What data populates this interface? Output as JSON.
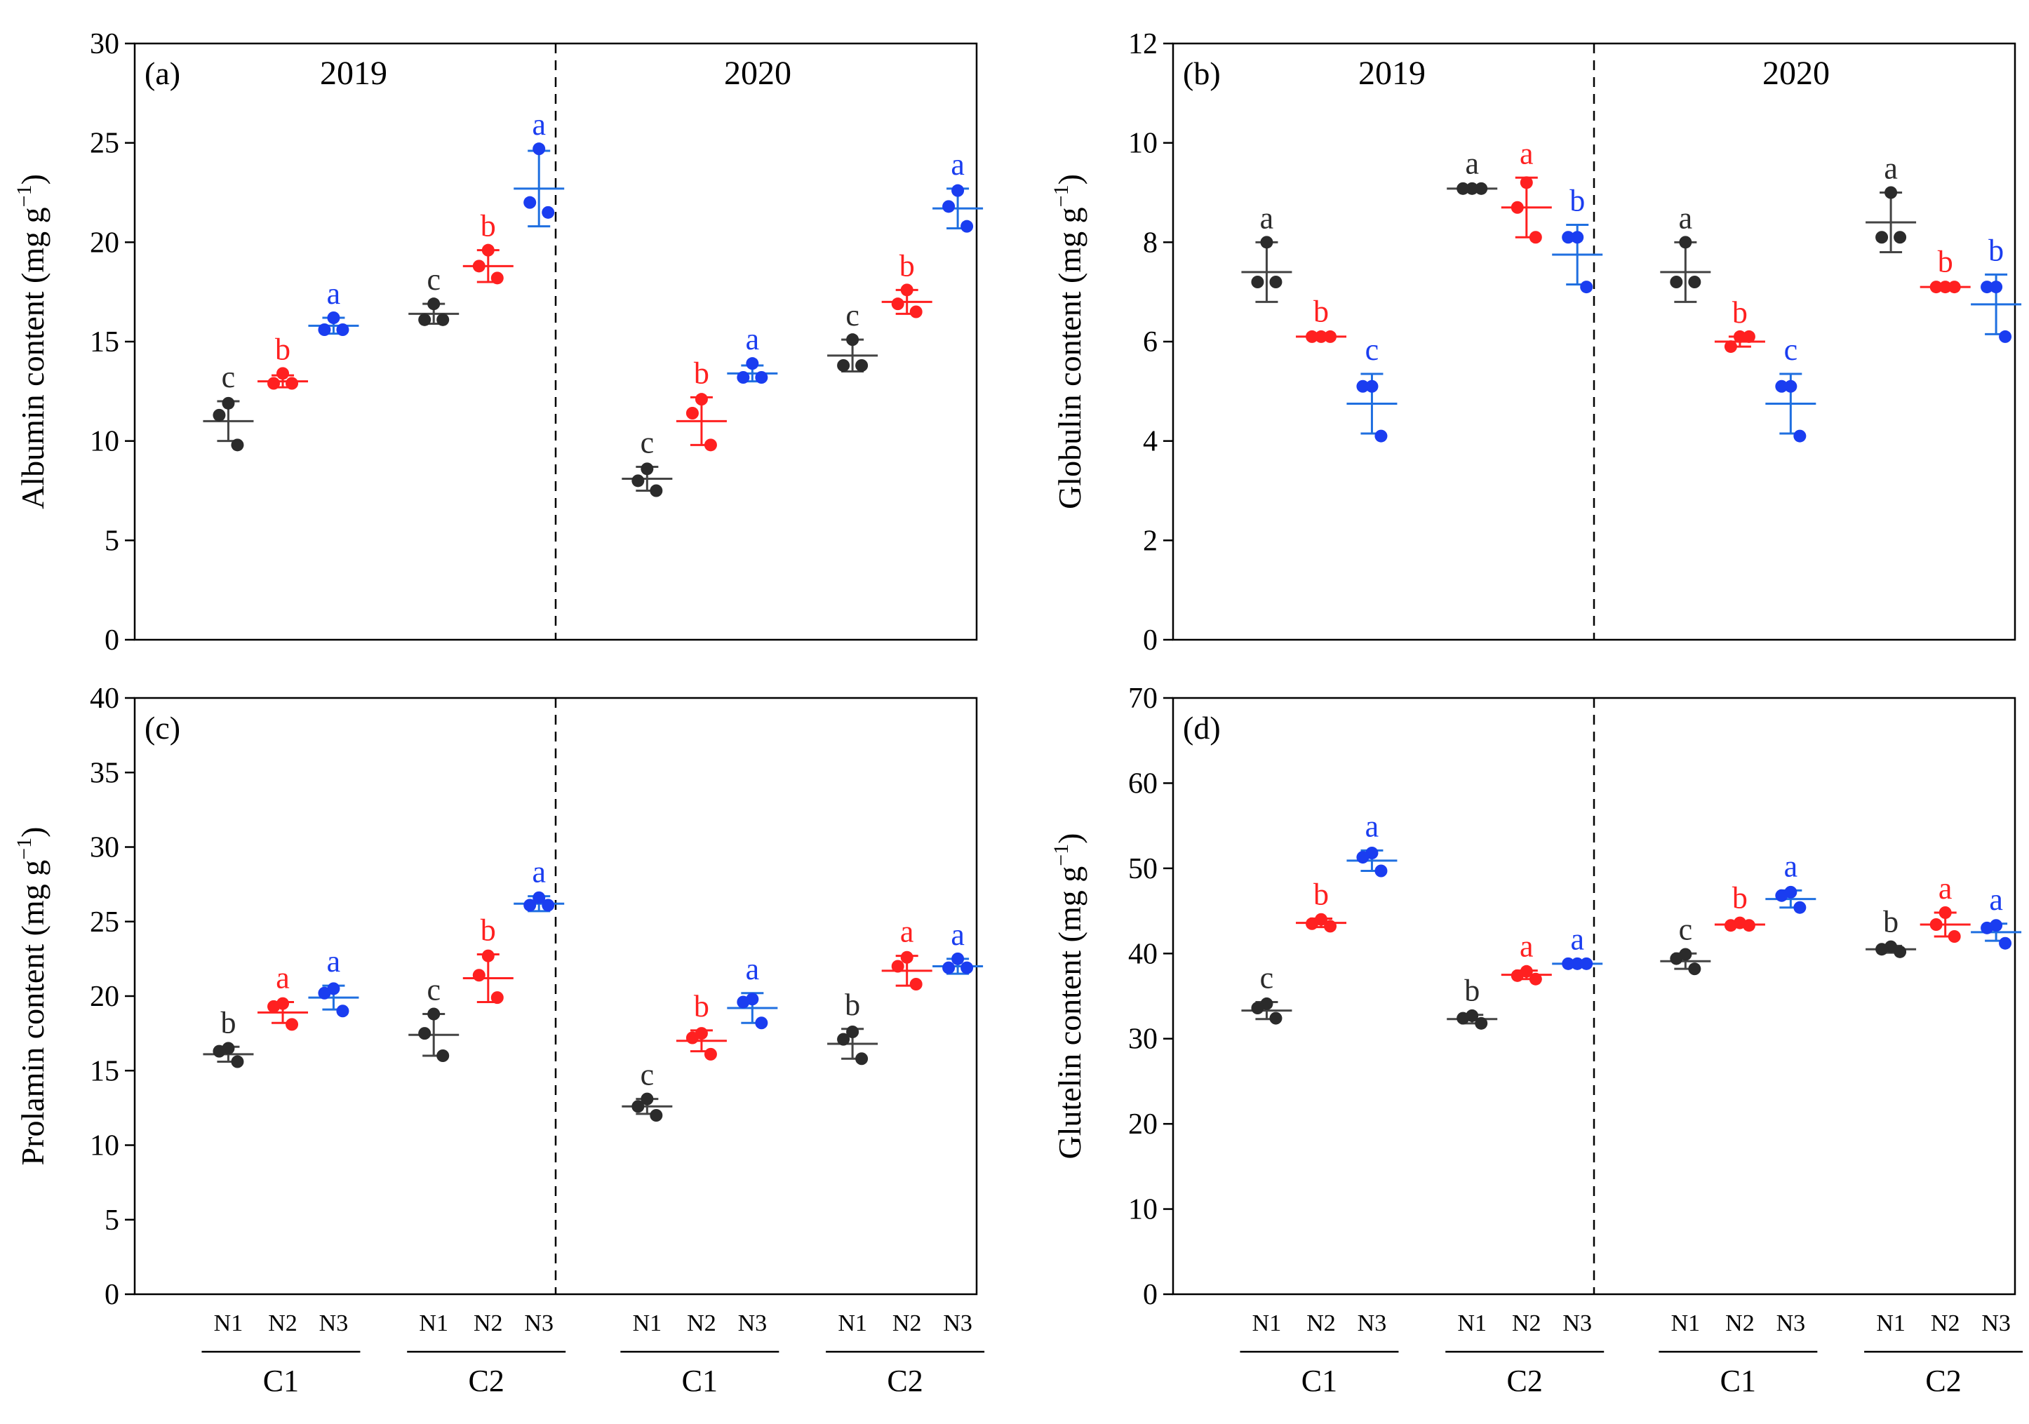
{
  "colors": {
    "N1": "#2b2b2b",
    "N2": "#ff2020",
    "N3": "#1a3df0",
    "errN3": "#1f6fe0",
    "axis": "#000000"
  },
  "chart_data": [
    {
      "type": "scatter",
      "panel_label": "(a)",
      "ylabel": "Albumin content (mg g",
      "ylabel_sup": "−1",
      "ylabel_end": ")",
      "ylim": [
        0,
        30
      ],
      "yticks": [
        "0",
        "5",
        "10",
        "15",
        "20",
        "25",
        "30"
      ],
      "years": [
        "2019",
        "2020"
      ],
      "cultivars": [
        "C1",
        "C2",
        "C1",
        "C2"
      ],
      "treatments": [
        "N1",
        "N2",
        "N3"
      ],
      "groups": [
        {
          "year": "2019",
          "cultivar": "C1",
          "points": [
            {
              "trt": "N1",
              "mean": 11.0,
              "sd": 1.0,
              "reps": [
                11.9,
                11.3,
                9.8
              ],
              "letter": "c"
            },
            {
              "trt": "N2",
              "mean": 13.0,
              "sd": 0.3,
              "reps": [
                13.4,
                12.9,
                12.9
              ],
              "letter": "b"
            },
            {
              "trt": "N3",
              "mean": 15.8,
              "sd": 0.4,
              "reps": [
                16.2,
                15.6,
                15.6
              ],
              "letter": "a"
            }
          ]
        },
        {
          "year": "2019",
          "cultivar": "C2",
          "points": [
            {
              "trt": "N1",
              "mean": 16.4,
              "sd": 0.5,
              "reps": [
                16.9,
                16.1,
                16.1
              ],
              "letter": "c"
            },
            {
              "trt": "N2",
              "mean": 18.8,
              "sd": 0.8,
              "reps": [
                19.6,
                18.8,
                18.2
              ],
              "letter": "b"
            },
            {
              "trt": "N3",
              "mean": 22.7,
              "sd": 1.9,
              "reps": [
                24.7,
                22.0,
                21.5
              ],
              "letter": "a"
            }
          ]
        },
        {
          "year": "2020",
          "cultivar": "C1",
          "points": [
            {
              "trt": "N1",
              "mean": 8.1,
              "sd": 0.6,
              "reps": [
                8.6,
                8.0,
                7.5
              ],
              "letter": "c"
            },
            {
              "trt": "N2",
              "mean": 11.0,
              "sd": 1.2,
              "reps": [
                12.1,
                11.4,
                9.8
              ],
              "letter": "b"
            },
            {
              "trt": "N3",
              "mean": 13.4,
              "sd": 0.4,
              "reps": [
                13.9,
                13.2,
                13.2
              ],
              "letter": "a"
            }
          ]
        },
        {
          "year": "2020",
          "cultivar": "C2",
          "points": [
            {
              "trt": "N1",
              "mean": 14.3,
              "sd": 0.8,
              "reps": [
                15.1,
                13.8,
                13.8
              ],
              "letter": "c"
            },
            {
              "trt": "N2",
              "mean": 17.0,
              "sd": 0.6,
              "reps": [
                17.6,
                16.9,
                16.5
              ],
              "letter": "b"
            },
            {
              "trt": "N3",
              "mean": 21.7,
              "sd": 1.0,
              "reps": [
                22.6,
                21.8,
                20.8
              ],
              "letter": "a"
            }
          ]
        }
      ]
    },
    {
      "type": "scatter",
      "panel_label": "(b)",
      "ylabel": "Globulin content (mg g",
      "ylabel_sup": "−1",
      "ylabel_end": ")",
      "ylim": [
        0,
        12
      ],
      "yticks": [
        "0",
        "2",
        "4",
        "6",
        "8",
        "10",
        "12"
      ],
      "years": [
        "2019",
        "2020"
      ],
      "cultivars": [
        "C1",
        "C2",
        "C1",
        "C2"
      ],
      "treatments": [
        "N1",
        "N2",
        "N3"
      ],
      "groups": [
        {
          "year": "2019",
          "cultivar": "C1",
          "points": [
            {
              "trt": "N1",
              "mean": 7.4,
              "sd": 0.6,
              "reps": [
                8.0,
                7.2,
                7.2
              ],
              "letter": "a"
            },
            {
              "trt": "N2",
              "mean": 6.1,
              "sd": 0.02,
              "reps": [
                6.1,
                6.1,
                6.1
              ],
              "letter": "b"
            },
            {
              "trt": "N3",
              "mean": 4.75,
              "sd": 0.6,
              "reps": [
                5.1,
                5.1,
                4.1
              ],
              "letter": "c"
            }
          ]
        },
        {
          "year": "2019",
          "cultivar": "C2",
          "points": [
            {
              "trt": "N1",
              "mean": 9.08,
              "sd": 0.02,
              "reps": [
                9.08,
                9.08,
                9.08
              ],
              "letter": "a"
            },
            {
              "trt": "N2",
              "mean": 8.7,
              "sd": 0.6,
              "reps": [
                9.2,
                8.7,
                8.1
              ],
              "letter": "a"
            },
            {
              "trt": "N3",
              "mean": 7.75,
              "sd": 0.6,
              "reps": [
                8.1,
                8.1,
                7.1
              ],
              "letter": "b"
            }
          ]
        },
        {
          "year": "2020",
          "cultivar": "C1",
          "points": [
            {
              "trt": "N1",
              "mean": 7.4,
              "sd": 0.6,
              "reps": [
                8.0,
                7.2,
                7.2
              ],
              "letter": "a"
            },
            {
              "trt": "N2",
              "mean": 6.0,
              "sd": 0.1,
              "reps": [
                6.1,
                5.9,
                6.1
              ],
              "letter": "b"
            },
            {
              "trt": "N3",
              "mean": 4.75,
              "sd": 0.6,
              "reps": [
                5.1,
                5.1,
                4.1
              ],
              "letter": "c"
            }
          ]
        },
        {
          "year": "2020",
          "cultivar": "C2",
          "points": [
            {
              "trt": "N1",
              "mean": 8.4,
              "sd": 0.6,
              "reps": [
                9.0,
                8.1,
                8.1
              ],
              "letter": "a"
            },
            {
              "trt": "N2",
              "mean": 7.1,
              "sd": 0.02,
              "reps": [
                7.1,
                7.1,
                7.1
              ],
              "letter": "b"
            },
            {
              "trt": "N3",
              "mean": 6.75,
              "sd": 0.6,
              "reps": [
                7.1,
                7.1,
                6.1
              ],
              "letter": "b"
            }
          ]
        }
      ]
    },
    {
      "type": "scatter",
      "panel_label": "(c)",
      "ylabel": "Prolamin content (mg g",
      "ylabel_sup": "−1",
      "ylabel_end": ")",
      "ylim": [
        0,
        40
      ],
      "yticks": [
        "0",
        "5",
        "10",
        "15",
        "20",
        "25",
        "30",
        "35",
        "40"
      ],
      "years": [
        "2019",
        "2020"
      ],
      "cultivars": [
        "C1",
        "C2",
        "C1",
        "C2"
      ],
      "treatments": [
        "N1",
        "N2",
        "N3"
      ],
      "groups": [
        {
          "year": "2019",
          "cultivar": "C1",
          "points": [
            {
              "trt": "N1",
              "mean": 16.1,
              "sd": 0.5,
              "reps": [
                16.5,
                16.3,
                15.6
              ],
              "letter": "b"
            },
            {
              "trt": "N2",
              "mean": 18.9,
              "sd": 0.7,
              "reps": [
                19.5,
                19.3,
                18.1
              ],
              "letter": "a"
            },
            {
              "trt": "N3",
              "mean": 19.9,
              "sd": 0.8,
              "reps": [
                20.5,
                20.2,
                19.0
              ],
              "letter": "a"
            }
          ]
        },
        {
          "year": "2019",
          "cultivar": "C2",
          "points": [
            {
              "trt": "N1",
              "mean": 17.4,
              "sd": 1.4,
              "reps": [
                18.8,
                17.5,
                16.0
              ],
              "letter": "c"
            },
            {
              "trt": "N2",
              "mean": 21.2,
              "sd": 1.6,
              "reps": [
                22.7,
                21.4,
                19.9
              ],
              "letter": "b"
            },
            {
              "trt": "N3",
              "mean": 26.2,
              "sd": 0.5,
              "reps": [
                26.6,
                26.1,
                26.1
              ],
              "letter": "a"
            }
          ]
        },
        {
          "year": "2020",
          "cultivar": "C1",
          "points": [
            {
              "trt": "N1",
              "mean": 12.6,
              "sd": 0.5,
              "reps": [
                13.1,
                12.6,
                12.0
              ],
              "letter": "c"
            },
            {
              "trt": "N2",
              "mean": 17.0,
              "sd": 0.7,
              "reps": [
                17.5,
                17.2,
                16.1
              ],
              "letter": "b"
            },
            {
              "trt": "N3",
              "mean": 19.2,
              "sd": 1.0,
              "reps": [
                19.8,
                19.6,
                18.2
              ],
              "letter": "a"
            }
          ]
        },
        {
          "year": "2020",
          "cultivar": "C2",
          "points": [
            {
              "trt": "N1",
              "mean": 16.8,
              "sd": 1.0,
              "reps": [
                17.6,
                17.1,
                15.8
              ],
              "letter": "b"
            },
            {
              "trt": "N2",
              "mean": 21.7,
              "sd": 1.0,
              "reps": [
                22.6,
                22.0,
                20.8
              ],
              "letter": "a"
            },
            {
              "trt": "N3",
              "mean": 22.0,
              "sd": 0.5,
              "reps": [
                22.5,
                21.9,
                21.9
              ],
              "letter": "a"
            }
          ]
        }
      ]
    },
    {
      "type": "scatter",
      "panel_label": "(d)",
      "ylabel": "Glutelin content (mg g",
      "ylabel_sup": "−1",
      "ylabel_end": ")",
      "ylim": [
        0,
        70
      ],
      "yticks": [
        "0",
        "10",
        "20",
        "30",
        "40",
        "50",
        "60",
        "70"
      ],
      "years": [
        "2019",
        "2020"
      ],
      "cultivars": [
        "C1",
        "C2",
        "C1",
        "C2"
      ],
      "treatments": [
        "N1",
        "N2",
        "N3"
      ],
      "groups": [
        {
          "year": "2019",
          "cultivar": "C1",
          "points": [
            {
              "trt": "N1",
              "mean": 33.3,
              "sd": 1.0,
              "reps": [
                34.1,
                33.6,
                32.4
              ],
              "letter": "c"
            },
            {
              "trt": "N2",
              "mean": 43.6,
              "sd": 0.5,
              "reps": [
                44.0,
                43.5,
                43.2
              ],
              "letter": "b"
            },
            {
              "trt": "N3",
              "mean": 50.9,
              "sd": 1.2,
              "reps": [
                51.8,
                51.3,
                49.7
              ],
              "letter": "a"
            }
          ]
        },
        {
          "year": "2019",
          "cultivar": "C2",
          "points": [
            {
              "trt": "N1",
              "mean": 32.3,
              "sd": 0.5,
              "reps": [
                32.7,
                32.4,
                31.8
              ],
              "letter": "b"
            },
            {
              "trt": "N2",
              "mean": 37.5,
              "sd": 0.5,
              "reps": [
                37.9,
                37.4,
                37.0
              ],
              "letter": "a"
            },
            {
              "trt": "N3",
              "mean": 38.8,
              "sd": 0.05,
              "reps": [
                38.8,
                38.8,
                38.8
              ],
              "letter": "a"
            }
          ]
        },
        {
          "year": "2020",
          "cultivar": "C1",
          "points": [
            {
              "trt": "N1",
              "mean": 39.1,
              "sd": 0.9,
              "reps": [
                39.9,
                39.4,
                38.2
              ],
              "letter": "c"
            },
            {
              "trt": "N2",
              "mean": 43.4,
              "sd": 0.3,
              "reps": [
                43.6,
                43.3,
                43.3
              ],
              "letter": "b"
            },
            {
              "trt": "N3",
              "mean": 46.4,
              "sd": 1.0,
              "reps": [
                47.2,
                46.8,
                45.4
              ],
              "letter": "a"
            }
          ]
        },
        {
          "year": "2020",
          "cultivar": "C2",
          "points": [
            {
              "trt": "N1",
              "mean": 40.5,
              "sd": 0.4,
              "reps": [
                40.8,
                40.5,
                40.2
              ],
              "letter": "b"
            },
            {
              "trt": "N2",
              "mean": 43.4,
              "sd": 1.4,
              "reps": [
                44.8,
                43.4,
                42.0
              ],
              "letter": "a"
            },
            {
              "trt": "N3",
              "mean": 42.5,
              "sd": 1.0,
              "reps": [
                43.3,
                43.0,
                41.2
              ],
              "letter": "a"
            }
          ]
        }
      ]
    }
  ]
}
